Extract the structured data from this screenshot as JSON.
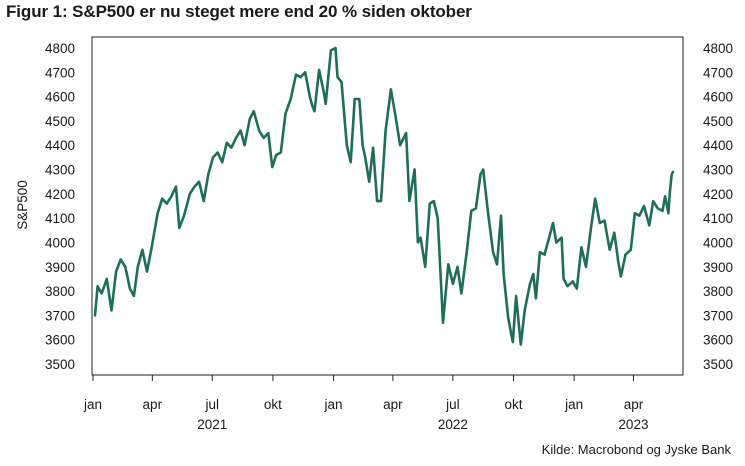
{
  "title": "Figur 1: S&P500 er nu steget mere end 20 % siden oktober",
  "source": "Kilde: Macrobond og Jyske Bank",
  "chart_data": {
    "type": "line",
    "ylabel": "S&P500",
    "ylim": [
      3500,
      4800
    ],
    "yticks": [
      3500,
      3600,
      3700,
      3800,
      3900,
      4000,
      4100,
      4200,
      4300,
      4400,
      4500,
      4600,
      4700,
      4800
    ],
    "xlim": [
      "2021-01-01",
      "2023-05-31"
    ],
    "x_ticks": [
      {
        "date": "2021-01-01",
        "label": "jan"
      },
      {
        "date": "2021-04-01",
        "label": "apr"
      },
      {
        "date": "2021-07-01",
        "label": "jul"
      },
      {
        "date": "2021-10-01",
        "label": "okt"
      },
      {
        "date": "2022-01-01",
        "label": "jan"
      },
      {
        "date": "2022-04-01",
        "label": "apr"
      },
      {
        "date": "2022-07-01",
        "label": "jul"
      },
      {
        "date": "2022-10-01",
        "label": "okt"
      },
      {
        "date": "2023-01-01",
        "label": "jan"
      },
      {
        "date": "2023-04-01",
        "label": "apr"
      }
    ],
    "year_labels": [
      {
        "date": "2021-07-01",
        "label": "2021"
      },
      {
        "date": "2022-07-01",
        "label": "2022"
      },
      {
        "date": "2023-04-01",
        "label": "2023"
      }
    ],
    "grid": false,
    "line_color": "#1e6e5a",
    "series": [
      {
        "points": [
          [
            "2021-01-04",
            3700
          ],
          [
            "2021-01-08",
            3820
          ],
          [
            "2021-01-14",
            3790
          ],
          [
            "2021-01-22",
            3850
          ],
          [
            "2021-01-29",
            3720
          ],
          [
            "2021-02-05",
            3880
          ],
          [
            "2021-02-12",
            3930
          ],
          [
            "2021-02-19",
            3900
          ],
          [
            "2021-02-26",
            3810
          ],
          [
            "2021-03-04",
            3780
          ],
          [
            "2021-03-10",
            3900
          ],
          [
            "2021-03-17",
            3970
          ],
          [
            "2021-03-24",
            3880
          ],
          [
            "2021-03-31",
            3980
          ],
          [
            "2021-04-09",
            4120
          ],
          [
            "2021-04-16",
            4180
          ],
          [
            "2021-04-23",
            4160
          ],
          [
            "2021-04-30",
            4190
          ],
          [
            "2021-05-07",
            4230
          ],
          [
            "2021-05-12",
            4060
          ],
          [
            "2021-05-19",
            4110
          ],
          [
            "2021-05-28",
            4200
          ],
          [
            "2021-06-04",
            4230
          ],
          [
            "2021-06-11",
            4250
          ],
          [
            "2021-06-18",
            4170
          ],
          [
            "2021-06-25",
            4280
          ],
          [
            "2021-07-02",
            4350
          ],
          [
            "2021-07-09",
            4370
          ],
          [
            "2021-07-16",
            4330
          ],
          [
            "2021-07-23",
            4410
          ],
          [
            "2021-07-30",
            4390
          ],
          [
            "2021-08-06",
            4430
          ],
          [
            "2021-08-13",
            4460
          ],
          [
            "2021-08-19",
            4400
          ],
          [
            "2021-08-27",
            4510
          ],
          [
            "2021-09-02",
            4540
          ],
          [
            "2021-09-10",
            4460
          ],
          [
            "2021-09-17",
            4430
          ],
          [
            "2021-09-24",
            4450
          ],
          [
            "2021-09-30",
            4310
          ],
          [
            "2021-10-06",
            4360
          ],
          [
            "2021-10-13",
            4370
          ],
          [
            "2021-10-20",
            4530
          ],
          [
            "2021-10-28",
            4590
          ],
          [
            "2021-11-05",
            4690
          ],
          [
            "2021-11-12",
            4680
          ],
          [
            "2021-11-19",
            4700
          ],
          [
            "2021-11-26",
            4600
          ],
          [
            "2021-11-30",
            4560
          ],
          [
            "2021-12-03",
            4540
          ],
          [
            "2021-12-10",
            4710
          ],
          [
            "2021-12-17",
            4620
          ],
          [
            "2021-12-20",
            4570
          ],
          [
            "2021-12-28",
            4790
          ],
          [
            "2022-01-04",
            4800
          ],
          [
            "2022-01-07",
            4680
          ],
          [
            "2022-01-13",
            4660
          ],
          [
            "2022-01-21",
            4400
          ],
          [
            "2022-01-27",
            4330
          ],
          [
            "2022-02-02",
            4590
          ],
          [
            "2022-02-09",
            4590
          ],
          [
            "2022-02-14",
            4400
          ],
          [
            "2022-02-18",
            4350
          ],
          [
            "2022-02-24",
            4250
          ],
          [
            "2022-03-02",
            4390
          ],
          [
            "2022-03-08",
            4170
          ],
          [
            "2022-03-14",
            4170
          ],
          [
            "2022-03-21",
            4460
          ],
          [
            "2022-03-29",
            4630
          ],
          [
            "2022-04-05",
            4520
          ],
          [
            "2022-04-12",
            4400
          ],
          [
            "2022-04-21",
            4450
          ],
          [
            "2022-04-26",
            4170
          ],
          [
            "2022-05-04",
            4300
          ],
          [
            "2022-05-09",
            4000
          ],
          [
            "2022-05-13",
            4020
          ],
          [
            "2022-05-20",
            3900
          ],
          [
            "2022-05-27",
            4160
          ],
          [
            "2022-06-02",
            4170
          ],
          [
            "2022-06-08",
            4100
          ],
          [
            "2022-06-16",
            3670
          ],
          [
            "2022-06-24",
            3910
          ],
          [
            "2022-07-01",
            3830
          ],
          [
            "2022-07-08",
            3900
          ],
          [
            "2022-07-14",
            3790
          ],
          [
            "2022-07-22",
            3960
          ],
          [
            "2022-07-29",
            4130
          ],
          [
            "2022-08-05",
            4140
          ],
          [
            "2022-08-12",
            4280
          ],
          [
            "2022-08-16",
            4300
          ],
          [
            "2022-08-23",
            4130
          ],
          [
            "2022-08-31",
            3960
          ],
          [
            "2022-09-06",
            3910
          ],
          [
            "2022-09-12",
            4110
          ],
          [
            "2022-09-16",
            3870
          ],
          [
            "2022-09-23",
            3690
          ],
          [
            "2022-09-30",
            3590
          ],
          [
            "2022-10-05",
            3780
          ],
          [
            "2022-10-12",
            3580
          ],
          [
            "2022-10-18",
            3720
          ],
          [
            "2022-10-26",
            3830
          ],
          [
            "2022-10-31",
            3870
          ],
          [
            "2022-11-04",
            3770
          ],
          [
            "2022-11-10",
            3960
          ],
          [
            "2022-11-17",
            3950
          ],
          [
            "2022-11-25",
            4030
          ],
          [
            "2022-11-30",
            4080
          ],
          [
            "2022-12-05",
            4000
          ],
          [
            "2022-12-13",
            4020
          ],
          [
            "2022-12-16",
            3850
          ],
          [
            "2022-12-22",
            3820
          ],
          [
            "2022-12-30",
            3840
          ],
          [
            "2023-01-05",
            3810
          ],
          [
            "2023-01-12",
            3980
          ],
          [
            "2023-01-19",
            3900
          ],
          [
            "2023-01-27",
            4070
          ],
          [
            "2023-02-02",
            4180
          ],
          [
            "2023-02-09",
            4080
          ],
          [
            "2023-02-16",
            4090
          ],
          [
            "2023-02-24",
            3970
          ],
          [
            "2023-03-03",
            4040
          ],
          [
            "2023-03-09",
            3920
          ],
          [
            "2023-03-13",
            3860
          ],
          [
            "2023-03-20",
            3950
          ],
          [
            "2023-03-28",
            3970
          ],
          [
            "2023-04-03",
            4120
          ],
          [
            "2023-04-10",
            4110
          ],
          [
            "2023-04-17",
            4150
          ],
          [
            "2023-04-25",
            4070
          ],
          [
            "2023-05-01",
            4170
          ],
          [
            "2023-05-08",
            4140
          ],
          [
            "2023-05-15",
            4130
          ],
          [
            "2023-05-19",
            4190
          ],
          [
            "2023-05-24",
            4120
          ],
          [
            "2023-05-26",
            4200
          ],
          [
            "2023-05-29",
            4280
          ],
          [
            "2023-05-31",
            4290
          ]
        ]
      }
    ]
  }
}
